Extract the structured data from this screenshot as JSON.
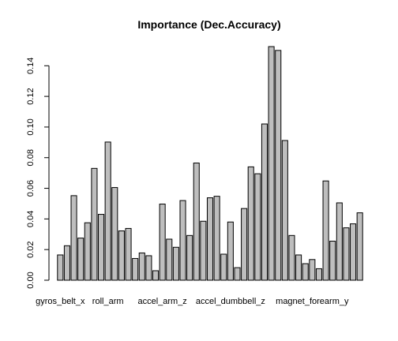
{
  "chart_data": {
    "type": "bar",
    "title": "Importance (Dec.Accuracy)",
    "xlabel": "",
    "ylabel": "",
    "ylim": [
      0,
      0.152
    ],
    "yticks": [
      0.0,
      0.02,
      0.04,
      0.06,
      0.08,
      0.1,
      0.12,
      0.14
    ],
    "ytick_labels": [
      "0.00",
      "0.02",
      "0.04",
      "0.06",
      "0.08",
      "0.10",
      "0.12",
      "0.14"
    ],
    "x_tick_labels": [
      {
        "index": 0,
        "label": "gyros_belt_x"
      },
      {
        "index": 7,
        "label": "roll_arm"
      },
      {
        "index": 15,
        "label": "accel_arm_z"
      },
      {
        "index": 25,
        "label": "accel_dumbbell_z"
      },
      {
        "index": 37,
        "label": "magnet_forearm_y"
      }
    ],
    "values": [
      0.0165,
      0.0225,
      0.0552,
      0.0275,
      0.0375,
      0.073,
      0.043,
      0.0902,
      0.0605,
      0.0322,
      0.0338,
      0.0142,
      0.0178,
      0.016,
      0.0062,
      0.0497,
      0.0268,
      0.0215,
      0.052,
      0.0292,
      0.0765,
      0.0385,
      0.0538,
      0.0548,
      0.017,
      0.038,
      0.0082,
      0.0468,
      0.074,
      0.0695,
      0.102,
      0.1525,
      0.15,
      0.0912,
      0.0292,
      0.0165,
      0.0108,
      0.0135,
      0.0075,
      0.0648,
      0.0255,
      0.0505,
      0.0342,
      0.0368,
      0.044
    ],
    "grid": false,
    "legend": "none"
  }
}
